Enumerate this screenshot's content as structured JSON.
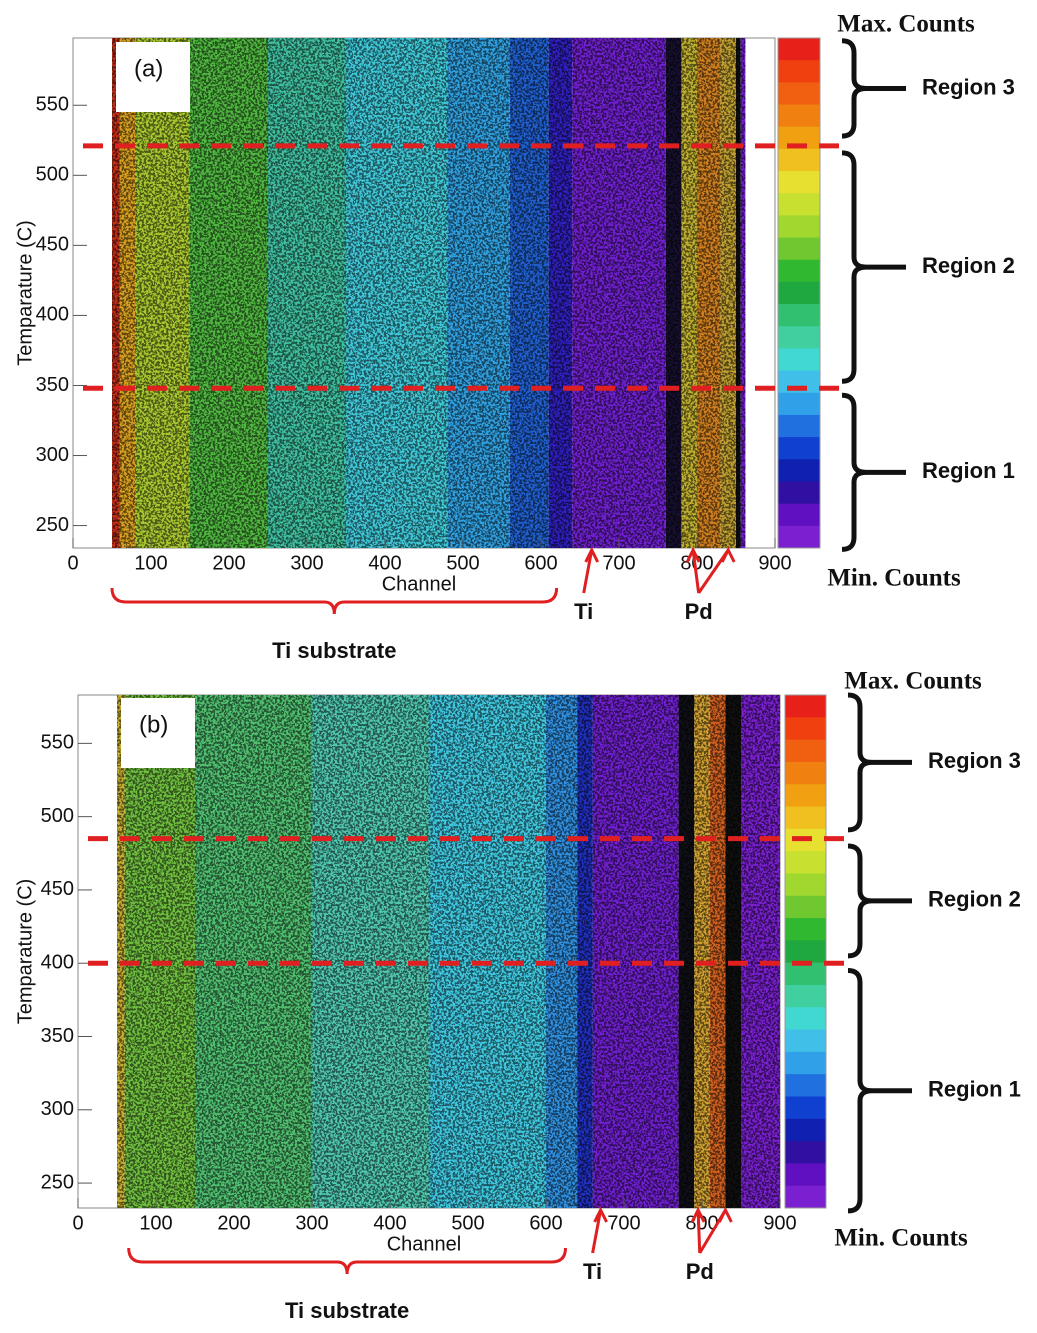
{
  "chart_data": [
    {
      "type": "heatmap",
      "panel_label": "(a)",
      "x_label": "Channel",
      "y_label": "Temparature (C)",
      "xlim": [
        0,
        900
      ],
      "ylim": [
        234,
        598
      ],
      "xticks": [
        0,
        100,
        200,
        300,
        400,
        500,
        600,
        700,
        800,
        900
      ],
      "yticks": [
        250,
        300,
        350,
        400,
        450,
        500,
        550
      ],
      "bands": [
        {
          "x": [
            50,
            60
          ],
          "color": "#c0301a"
        },
        {
          "x": [
            60,
            80
          ],
          "color": "#d8a020"
        },
        {
          "x": [
            80,
            150
          ],
          "color": "#a8c830"
        },
        {
          "x": [
            150,
            250
          ],
          "color": "#50b840"
        },
        {
          "x": [
            250,
            350
          ],
          "color": "#40c0a0"
        },
        {
          "x": [
            350,
            480
          ],
          "color": "#40c8d8"
        },
        {
          "x": [
            480,
            560
          ],
          "color": "#30a0e0"
        },
        {
          "x": [
            560,
            610
          ],
          "color": "#2060d0"
        },
        {
          "x": [
            610,
            640
          ],
          "color": "#3020c0"
        },
        {
          "x": [
            640,
            760
          ],
          "color": "#7020d0"
        },
        {
          "x": [
            760,
            780
          ],
          "color": "#181030"
        },
        {
          "x": [
            780,
            800
          ],
          "color": "#c0b030"
        },
        {
          "x": [
            800,
            830
          ],
          "color": "#d08020"
        },
        {
          "x": [
            830,
            850
          ],
          "color": "#c0a030"
        },
        {
          "x": [
            850,
            856
          ],
          "color": "#101010"
        },
        {
          "x": [
            856,
            862
          ],
          "color": "#7020d0"
        }
      ],
      "thresholds": [
        521,
        348
      ],
      "threshold_color": "#e02020",
      "regions": [
        {
          "label": "Region 3",
          "range": [
            528,
            596
          ]
        },
        {
          "label": "Region 2",
          "range": [
            353,
            516
          ]
        },
        {
          "label": "Region 1",
          "range": [
            233,
            343
          ]
        }
      ],
      "annotations": [
        {
          "text": "Ti substrate",
          "x": [
            50,
            620
          ]
        },
        {
          "text": "Ti",
          "x": [
            665
          ]
        },
        {
          "text": "Pd",
          "x": [
            795,
            840
          ]
        }
      ],
      "annotation_color": "#e02020",
      "colorbar": {
        "max_label": "Max. Counts",
        "min_label": "Min. Counts"
      }
    },
    {
      "type": "heatmap",
      "panel_label": "(b)",
      "x_label": "Channel",
      "y_label": "Temparature (C)",
      "xlim": [
        0,
        900
      ],
      "ylim": [
        233,
        583
      ],
      "xticks": [
        0,
        100,
        200,
        300,
        400,
        500,
        600,
        700,
        800,
        900
      ],
      "yticks": [
        250,
        300,
        350,
        400,
        450,
        500,
        550
      ],
      "bands": [
        {
          "x": [
            50,
            60
          ],
          "color": "#c8b030"
        },
        {
          "x": [
            60,
            150
          ],
          "color": "#70c040"
        },
        {
          "x": [
            150,
            300
          ],
          "color": "#50c070"
        },
        {
          "x": [
            300,
            450
          ],
          "color": "#50c8b0"
        },
        {
          "x": [
            450,
            600
          ],
          "color": "#40c8e0"
        },
        {
          "x": [
            600,
            640
          ],
          "color": "#3090e0"
        },
        {
          "x": [
            640,
            660
          ],
          "color": "#2030c0"
        },
        {
          "x": [
            660,
            770
          ],
          "color": "#7020d0"
        },
        {
          "x": [
            770,
            790
          ],
          "color": "#101018"
        },
        {
          "x": [
            790,
            810
          ],
          "color": "#d0a030"
        },
        {
          "x": [
            810,
            830
          ],
          "color": "#d06020"
        },
        {
          "x": [
            830,
            850
          ],
          "color": "#101010"
        },
        {
          "x": [
            850,
            900
          ],
          "color": "#7a20d0"
        }
      ],
      "thresholds": [
        485,
        400
      ],
      "threshold_color": "#e02020",
      "regions": [
        {
          "label": "Region 3",
          "range": [
            491,
            583
          ]
        },
        {
          "label": "Region 2",
          "range": [
            405,
            480
          ]
        },
        {
          "label": "Region 1",
          "range": [
            231,
            395
          ]
        }
      ],
      "annotations": [
        {
          "text": "Ti substrate",
          "x": [
            65,
            625
          ]
        },
        {
          "text": "Ti",
          "x": [
            670
          ]
        },
        {
          "text": "Pd",
          "x": [
            795,
            830
          ]
        }
      ],
      "annotation_color": "#e02020",
      "colorbar": {
        "max_label": "Max. Counts",
        "min_label": "Min. Counts"
      }
    }
  ],
  "colorbar_colors": [
    "#e8201a",
    "#f04010",
    "#f06010",
    "#f08010",
    "#f0a010",
    "#f0c020",
    "#e8e030",
    "#c8e030",
    "#a0d830",
    "#70c830",
    "#30b830",
    "#20a840",
    "#30c070",
    "#40d0a0",
    "#40d8d0",
    "#40c0e8",
    "#30a0e8",
    "#2070e0",
    "#1040d0",
    "#1020b0",
    "#3010a0",
    "#6010c0",
    "#7a20d0"
  ]
}
